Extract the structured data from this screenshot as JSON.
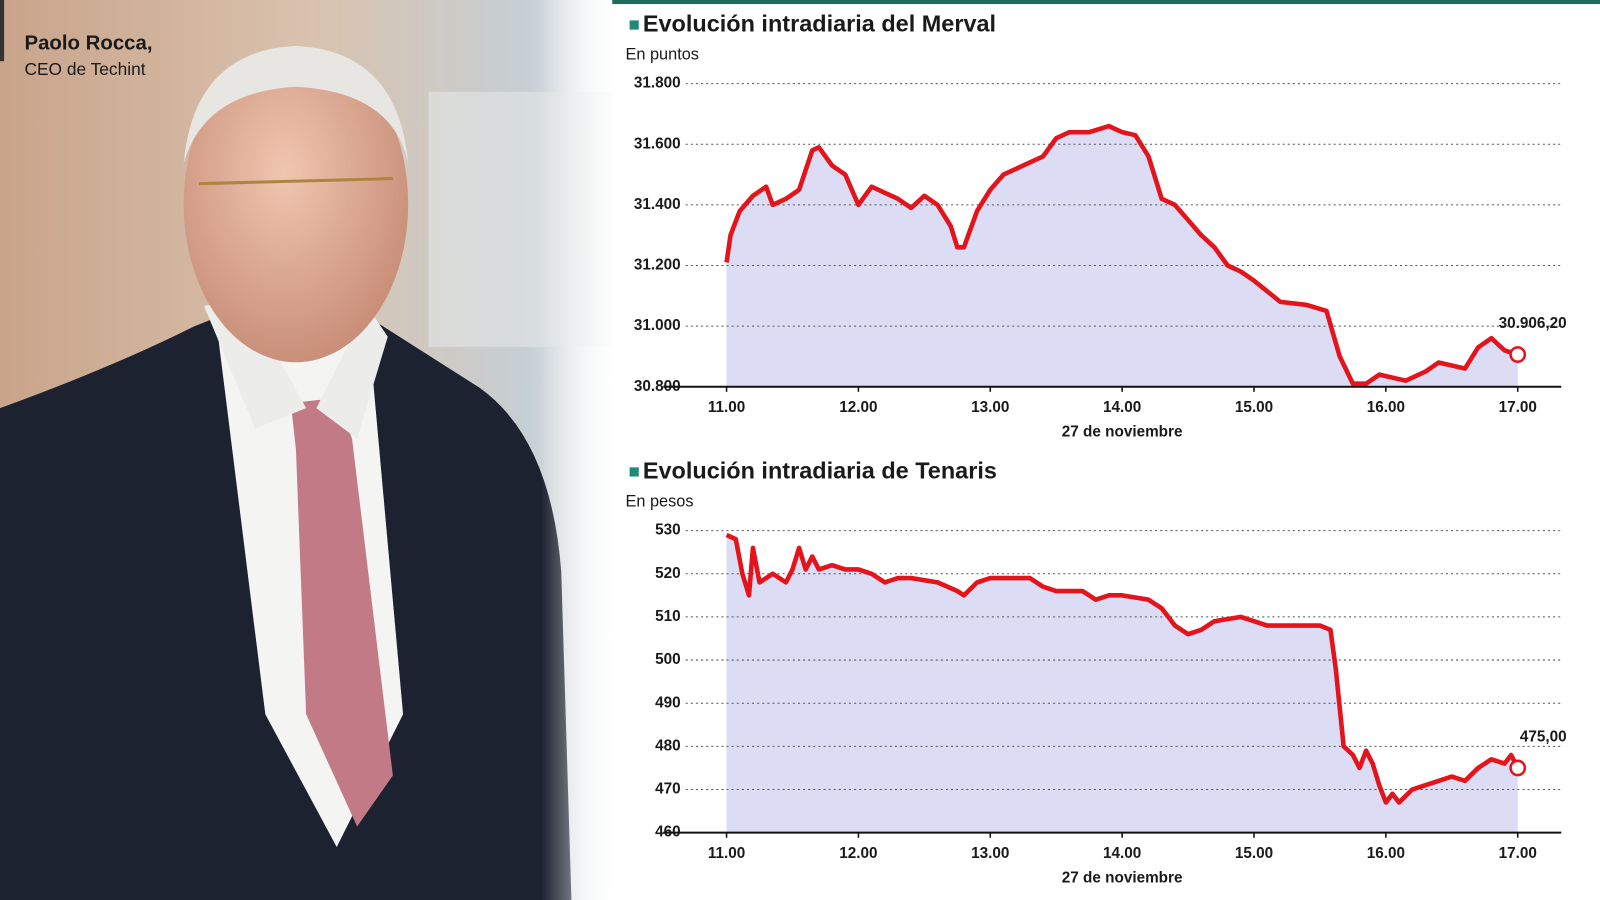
{
  "photo": {
    "name": "Paolo Rocca,",
    "role": "CEO de Techint"
  },
  "chart_data": [
    {
      "type": "line",
      "title": "Evolución intradiaria del Merval",
      "subtitle": "En puntos",
      "xlabel": "27 de noviembre",
      "color": "#e3141b",
      "fill": "#dcdcf4",
      "grid": true,
      "xlim": [
        10.52,
        17.33
      ],
      "ylim": [
        30800,
        31800
      ],
      "xticks": [
        {
          "value": 11,
          "label": "11.00"
        },
        {
          "value": 12,
          "label": "12.00"
        },
        {
          "value": 13,
          "label": "13.00"
        },
        {
          "value": 14,
          "label": "14.00"
        },
        {
          "value": 15,
          "label": "15.00"
        },
        {
          "value": 16,
          "label": "16.00"
        },
        {
          "value": 17,
          "label": "17.00"
        }
      ],
      "yticks": [
        {
          "value": 30800,
          "label": "30.800"
        },
        {
          "value": 31000,
          "label": "31.000"
        },
        {
          "value": 31200,
          "label": "31.200"
        },
        {
          "value": 31400,
          "label": "31.400"
        },
        {
          "value": 31600,
          "label": "31.600"
        },
        {
          "value": 31800,
          "label": "31.800"
        }
      ],
      "x": [
        11.0,
        11.03,
        11.1,
        11.2,
        11.3,
        11.35,
        11.45,
        11.55,
        11.65,
        11.7,
        11.8,
        11.9,
        12.0,
        12.1,
        12.2,
        12.3,
        12.4,
        12.5,
        12.6,
        12.7,
        12.75,
        12.8,
        12.9,
        13.0,
        13.1,
        13.2,
        13.3,
        13.4,
        13.5,
        13.6,
        13.75,
        13.9,
        14.0,
        14.1,
        14.2,
        14.3,
        14.4,
        14.5,
        14.6,
        14.7,
        14.8,
        14.9,
        15.0,
        15.2,
        15.4,
        15.55,
        15.65,
        15.75,
        15.85,
        15.95,
        16.05,
        16.15,
        16.3,
        16.4,
        16.5,
        16.6,
        16.7,
        16.8,
        16.9,
        17.0
      ],
      "values": [
        31210,
        31300,
        31380,
        31430,
        31460,
        31400,
        31420,
        31450,
        31580,
        31590,
        31530,
        31500,
        31400,
        31460,
        31440,
        31420,
        31390,
        31430,
        31400,
        31330,
        31260,
        31260,
        31380,
        31450,
        31500,
        31520,
        31540,
        31560,
        31620,
        31640,
        31640,
        31660,
        31640,
        31630,
        31560,
        31420,
        31400,
        31350,
        31300,
        31260,
        31200,
        31180,
        31150,
        31080,
        31070,
        31050,
        30900,
        30810,
        30810,
        30840,
        30830,
        30820,
        30850,
        30880,
        30870,
        30860,
        30930,
        30960,
        30920,
        30906.2
      ],
      "value_labels": [
        null,
        null,
        null,
        null,
        null,
        null,
        null,
        null,
        null,
        null,
        null,
        null,
        null,
        null,
        null,
        null,
        null,
        null,
        null,
        null,
        null,
        null,
        null,
        null,
        null,
        null,
        null,
        null,
        null,
        null,
        null,
        null,
        null,
        null,
        null,
        null,
        null,
        null,
        null,
        null,
        null,
        null,
        null,
        null,
        null,
        null,
        null,
        null,
        null,
        null,
        null,
        null,
        null,
        null,
        null,
        null,
        null,
        null,
        null,
        "30.906,20"
      ]
    },
    {
      "type": "line",
      "title": "Evolución intradiaria de Tenaris",
      "subtitle": "En pesos",
      "xlabel": "27 de noviembre",
      "color": "#e3141b",
      "fill": "#dcdcf4",
      "grid": true,
      "xlim": [
        10.52,
        17.33
      ],
      "ylim": [
        460,
        530
      ],
      "xticks": [
        {
          "value": 11,
          "label": "11.00"
        },
        {
          "value": 12,
          "label": "12.00"
        },
        {
          "value": 13,
          "label": "13.00"
        },
        {
          "value": 14,
          "label": "14.00"
        },
        {
          "value": 15,
          "label": "15.00"
        },
        {
          "value": 16,
          "label": "16.00"
        },
        {
          "value": 17,
          "label": "17.00"
        }
      ],
      "yticks": [
        460,
        470,
        480,
        490,
        500,
        510,
        520,
        530
      ],
      "x": [
        11.0,
        11.07,
        11.12,
        11.17,
        11.2,
        11.25,
        11.35,
        11.45,
        11.5,
        11.55,
        11.6,
        11.65,
        11.7,
        11.8,
        11.9,
        12.0,
        12.1,
        12.2,
        12.3,
        12.4,
        12.6,
        12.75,
        12.8,
        12.9,
        13.0,
        13.2,
        13.3,
        13.4,
        13.5,
        13.7,
        13.8,
        13.9,
        14.0,
        14.2,
        14.3,
        14.4,
        14.5,
        14.6,
        14.7,
        14.9,
        15.0,
        15.1,
        15.3,
        15.5,
        15.58,
        15.62,
        15.68,
        15.75,
        15.8,
        15.85,
        15.9,
        15.95,
        16.0,
        16.05,
        16.1,
        16.2,
        16.3,
        16.5,
        16.6,
        16.7,
        16.8,
        16.9,
        16.95,
        17.0
      ],
      "values": [
        529,
        528,
        520,
        515,
        526,
        518,
        520,
        518,
        521,
        526,
        521,
        524,
        521,
        522,
        521,
        521,
        520,
        518,
        519,
        519,
        518,
        516,
        515,
        518,
        519,
        519,
        519,
        517,
        516,
        516,
        514,
        515,
        515,
        514,
        512,
        508,
        506,
        507,
        509,
        510,
        509,
        508,
        508,
        508,
        507,
        498,
        480,
        478,
        475,
        479,
        476,
        471,
        467,
        469,
        467,
        470,
        471,
        473,
        472,
        475,
        477,
        476,
        478,
        475
      ],
      "value_labels": [
        null,
        null,
        null,
        null,
        null,
        null,
        null,
        null,
        null,
        null,
        null,
        null,
        null,
        null,
        null,
        null,
        null,
        null,
        null,
        null,
        null,
        null,
        null,
        null,
        null,
        null,
        null,
        null,
        null,
        null,
        null,
        null,
        null,
        null,
        null,
        null,
        null,
        null,
        null,
        null,
        null,
        null,
        null,
        null,
        null,
        null,
        null,
        null,
        null,
        null,
        null,
        null,
        null,
        null,
        null,
        null,
        null,
        null,
        null,
        null,
        null,
        null,
        null,
        "475,00"
      ]
    }
  ]
}
